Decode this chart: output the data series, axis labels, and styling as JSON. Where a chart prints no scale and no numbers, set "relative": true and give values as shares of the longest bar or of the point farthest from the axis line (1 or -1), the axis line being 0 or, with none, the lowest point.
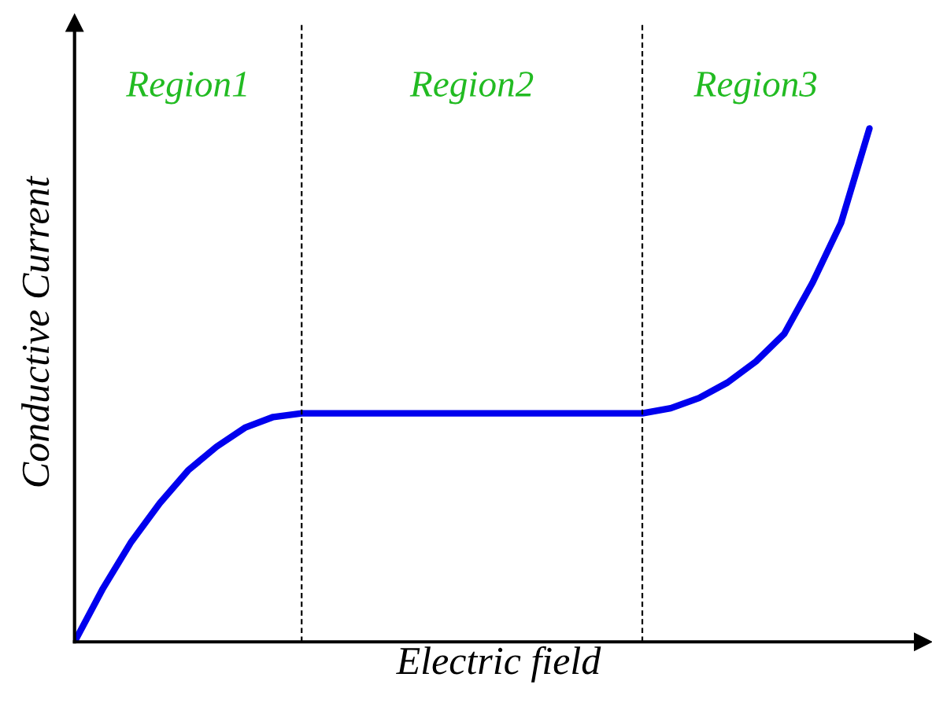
{
  "chart_data": {
    "type": "line",
    "xlabel": "Electric field",
    "ylabel": "Conductive Current",
    "relative": true,
    "categories": [
      null,
      null,
      null,
      null,
      null,
      null,
      null,
      null,
      null,
      null,
      null,
      null,
      null,
      null,
      null,
      null,
      null,
      null,
      null,
      null,
      null,
      null,
      null,
      null,
      null,
      null,
      null,
      null,
      null
    ],
    "series": [
      {
        "color": "#0000ee",
        "values": [
          0,
          0.104,
          0.195,
          0.27,
          0.334,
          0.38,
          0.417,
          0.438,
          0.445,
          0.445,
          0.445,
          0.445,
          0.445,
          0.445,
          0.445,
          0.445,
          0.445,
          0.445,
          0.445,
          0.445,
          0.445,
          0.455,
          0.475,
          0.505,
          0.546,
          0.6,
          0.7,
          0.816,
          1
        ]
      }
    ],
    "annotations": [
      "Region1",
      "Region2",
      "Region3"
    ],
    "line_style": "solid",
    "marker": "none",
    "legend": false
  }
}
